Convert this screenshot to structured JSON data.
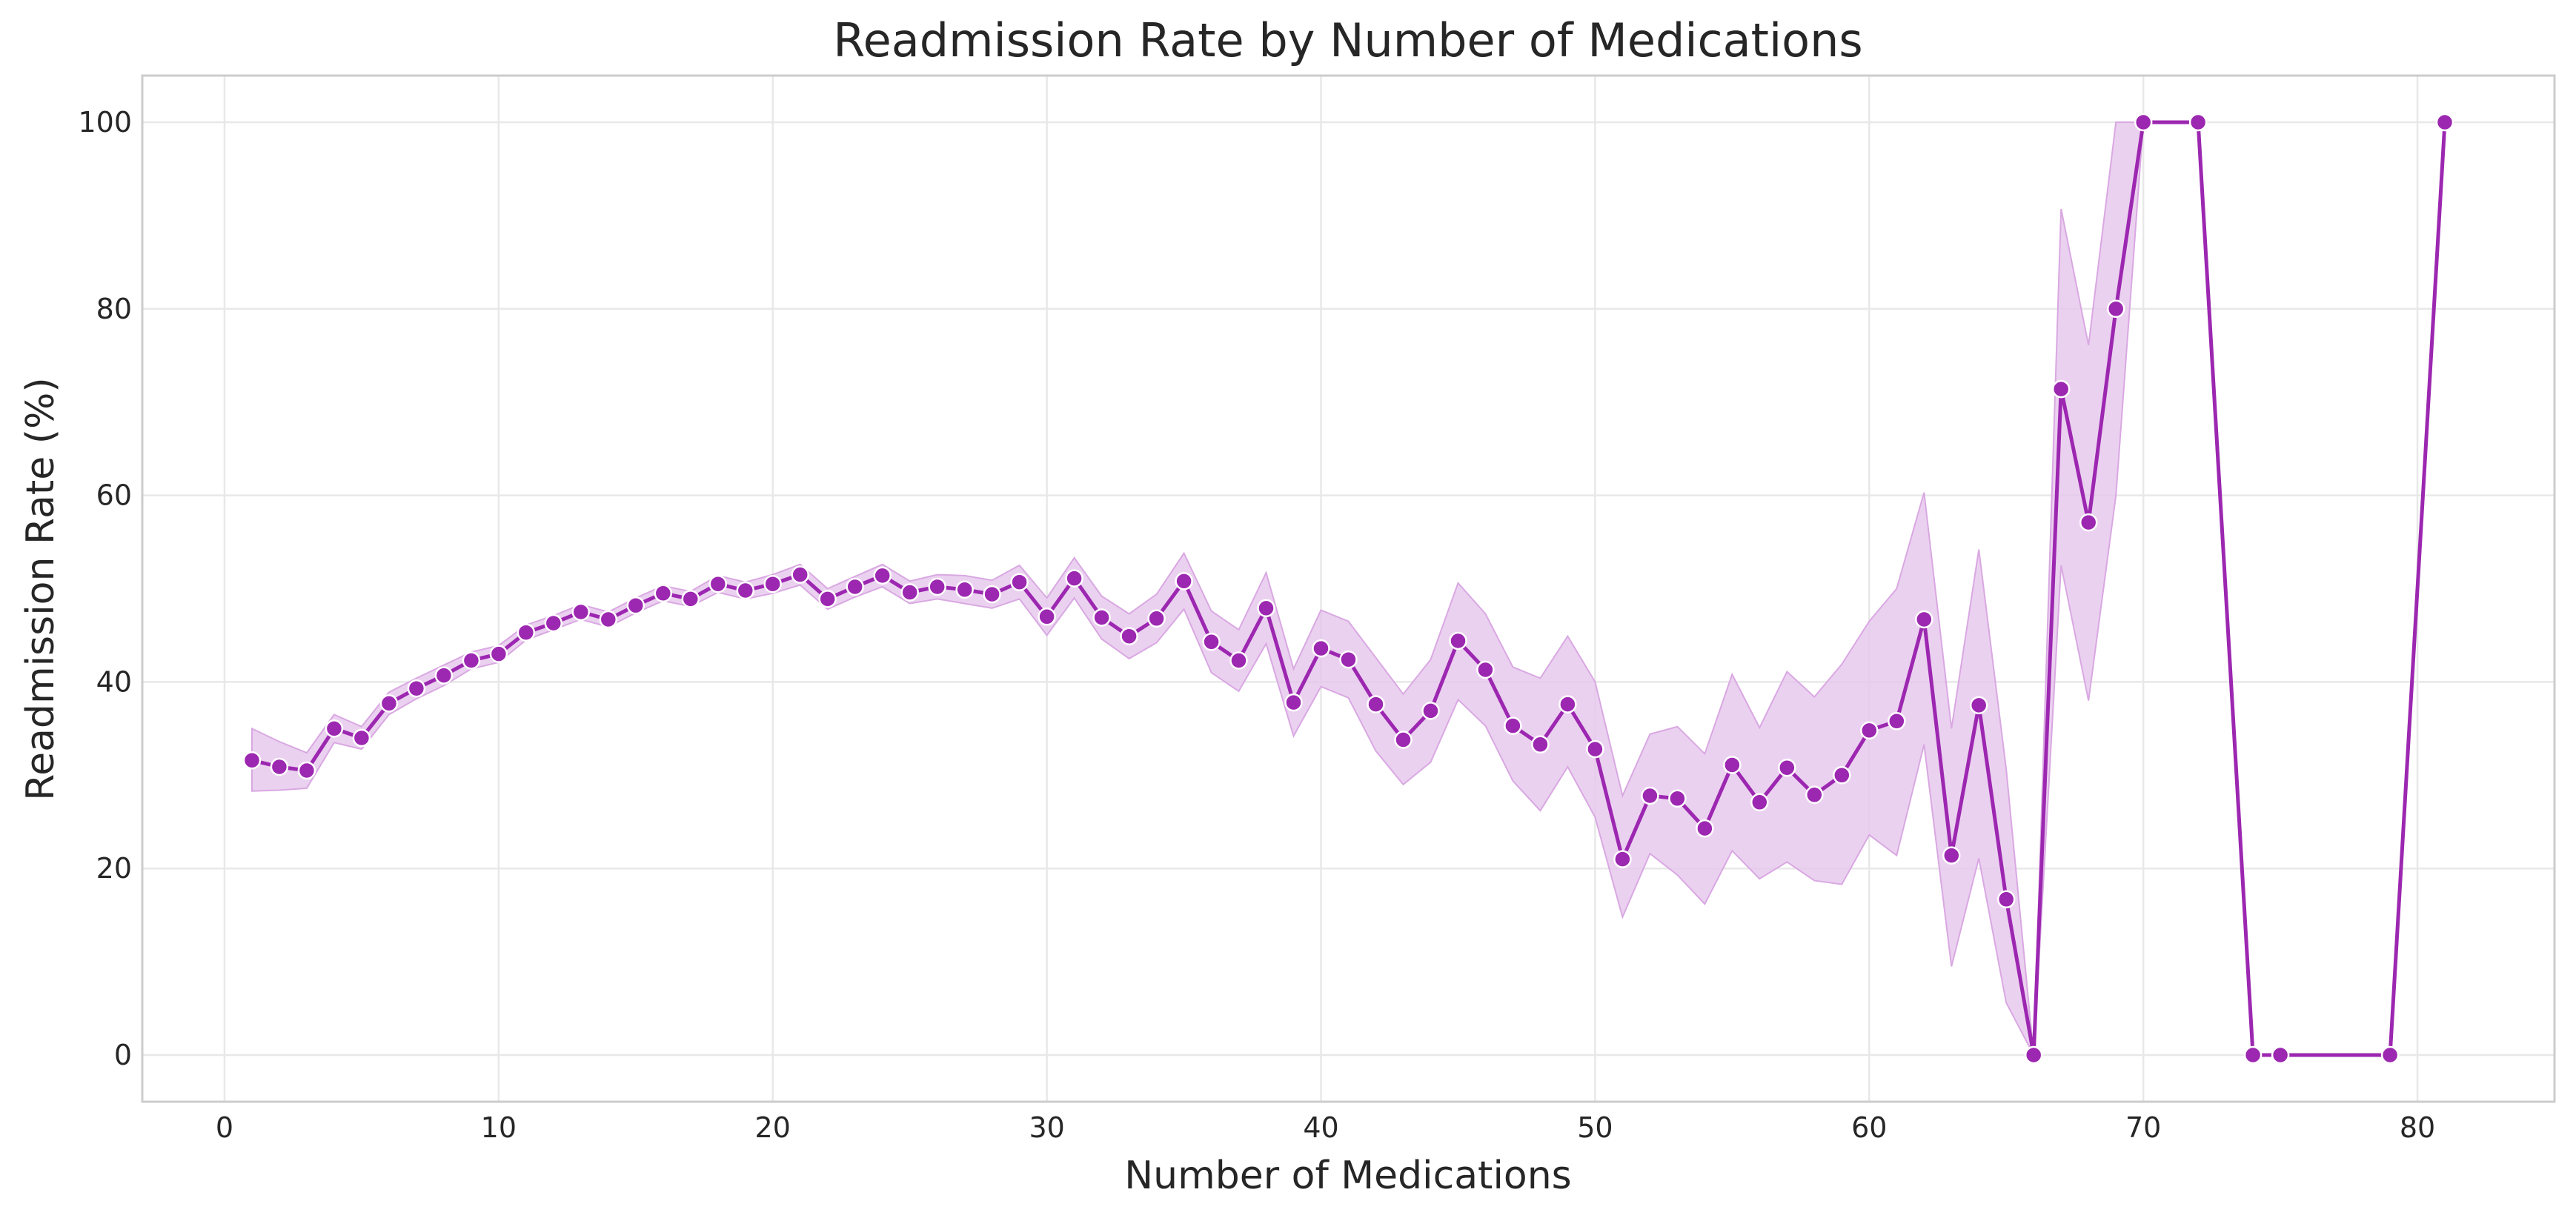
{
  "chart_data": {
    "type": "line",
    "title": "Readmission Rate by Number of Medications",
    "xlabel": "Number of Medications",
    "ylabel": "Readmission Rate (%)",
    "xlim": [
      -3,
      85
    ],
    "ylim": [
      -5,
      105
    ],
    "xticks": [
      0,
      10,
      20,
      30,
      40,
      50,
      60,
      70,
      80
    ],
    "yticks": [
      0,
      20,
      40,
      60,
      80,
      100
    ],
    "grid": true,
    "colors": {
      "line": "#9c27b0",
      "band": "#e6c6ec",
      "band_edge": "#d9a8e2",
      "marker_edge": "#ffffff"
    },
    "series": [
      {
        "x": [
          1,
          2,
          3,
          4,
          5,
          6,
          7,
          8,
          9,
          10,
          11,
          12,
          13,
          14,
          15,
          16,
          17,
          18,
          19,
          20,
          21,
          22,
          23,
          24,
          25,
          26,
          27,
          28,
          29,
          30,
          31,
          32,
          33,
          34,
          35,
          36,
          37,
          38,
          39,
          40,
          41,
          42,
          43,
          44,
          45,
          46,
          47,
          48,
          49,
          50,
          51,
          52,
          53,
          54,
          55,
          56,
          57,
          58,
          59,
          60,
          61,
          62,
          63,
          64,
          65,
          66,
          67,
          68,
          69,
          70,
          72,
          74,
          75,
          79,
          81
        ],
        "y": [
          31.6,
          30.9,
          30.5,
          35.0,
          34.0,
          37.7,
          39.3,
          40.7,
          42.3,
          43.0,
          45.3,
          46.3,
          47.5,
          46.7,
          48.2,
          49.5,
          48.9,
          50.5,
          49.8,
          50.5,
          51.5,
          48.9,
          50.2,
          51.4,
          49.6,
          50.2,
          49.9,
          49.4,
          50.7,
          47.0,
          51.1,
          46.9,
          44.9,
          46.8,
          50.8,
          44.3,
          42.3,
          47.9,
          37.8,
          43.6,
          42.4,
          37.6,
          33.8,
          36.9,
          44.4,
          41.3,
          35.3,
          33.3,
          37.6,
          32.8,
          21.0,
          27.8,
          27.5,
          24.3,
          31.1,
          27.1,
          30.8,
          27.9,
          30.0,
          34.8,
          35.8,
          46.7,
          21.4,
          37.5,
          16.7,
          0,
          71.4,
          57.1,
          80.0,
          100,
          100,
          0,
          0,
          0,
          100
        ],
        "ci_x": [
          1,
          2,
          3,
          4,
          5,
          6,
          7,
          8,
          9,
          10,
          11,
          12,
          13,
          14,
          15,
          16,
          17,
          18,
          19,
          20,
          21,
          22,
          23,
          24,
          25,
          26,
          27,
          28,
          29,
          30,
          31,
          32,
          33,
          34,
          35,
          36,
          37,
          38,
          39,
          40,
          41,
          42,
          43,
          44,
          45,
          46,
          47,
          48,
          49,
          50,
          51,
          52,
          53,
          54,
          55,
          56,
          57,
          58,
          59,
          60,
          61,
          62,
          63,
          64,
          65,
          66,
          67,
          68,
          69,
          70
        ],
        "ci_low": [
          28.3,
          28.4,
          28.6,
          33.5,
          32.8,
          36.5,
          38.2,
          39.6,
          41.4,
          42.1,
          44.5,
          45.6,
          46.7,
          45.9,
          47.4,
          48.7,
          48.1,
          49.6,
          48.9,
          49.5,
          50.4,
          47.8,
          49.1,
          50.2,
          48.4,
          48.9,
          48.4,
          47.9,
          48.9,
          45.0,
          49.0,
          44.6,
          42.5,
          44.2,
          47.8,
          41.0,
          39.0,
          44.1,
          34.2,
          39.5,
          38.3,
          32.6,
          29.0,
          31.4,
          38.1,
          35.3,
          29.4,
          26.2,
          30.9,
          25.5,
          14.8,
          21.6,
          19.3,
          16.2,
          21.9,
          18.9,
          20.7,
          18.7,
          18.3,
          23.6,
          21.4,
          33.3,
          9.5,
          21.1,
          5.6,
          0,
          52.5,
          38.0,
          60.0,
          100
        ],
        "ci_high": [
          35.0,
          33.6,
          32.4,
          36.5,
          35.2,
          38.9,
          40.4,
          41.8,
          43.2,
          43.9,
          46.1,
          47.1,
          48.3,
          47.5,
          49.0,
          50.3,
          49.7,
          51.4,
          50.7,
          51.5,
          52.6,
          50.0,
          51.3,
          52.6,
          50.8,
          51.5,
          51.4,
          50.9,
          52.5,
          49.0,
          53.3,
          49.2,
          47.3,
          49.4,
          53.8,
          47.6,
          45.6,
          51.7,
          41.4,
          47.7,
          46.5,
          42.6,
          38.7,
          42.4,
          50.6,
          47.3,
          41.6,
          40.4,
          44.9,
          40.0,
          27.8,
          34.4,
          35.2,
          32.3,
          40.8,
          35.1,
          41.1,
          38.4,
          41.9,
          46.5,
          50.0,
          60.3,
          35.0,
          54.2,
          30.6,
          0,
          90.7,
          76.1,
          100,
          100
        ]
      }
    ]
  }
}
